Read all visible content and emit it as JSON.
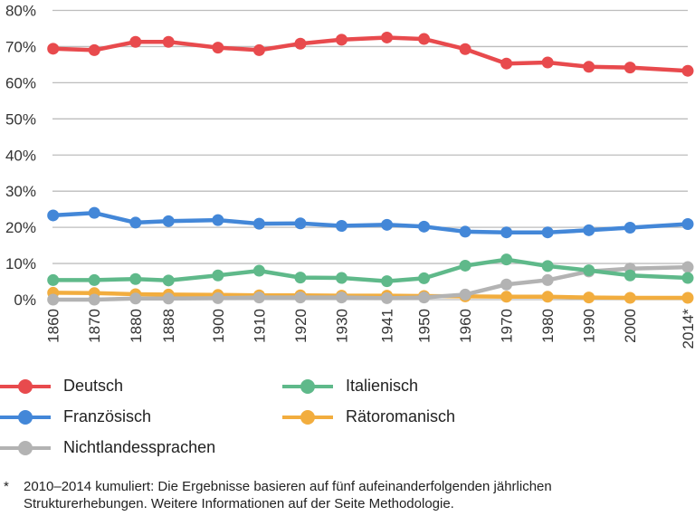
{
  "chart_data": {
    "type": "line",
    "x": [
      1860,
      1870,
      1880,
      1888,
      1900,
      1910,
      1920,
      1930,
      1941,
      1950,
      1960,
      1970,
      1980,
      1990,
      2000,
      2014
    ],
    "x_tick_labels": [
      "1860",
      "1870",
      "1880",
      "1888",
      "1900",
      "1910",
      "1920",
      "1930",
      "1941",
      "1950",
      "1960",
      "1970",
      "1980",
      "1990",
      "2000",
      "2014*"
    ],
    "y_tick_labels": [
      "0%",
      "10%",
      "20%",
      "30%",
      "40%",
      "50%",
      "60%",
      "70%",
      "80%"
    ],
    "ylim": [
      0,
      80
    ],
    "grid": true,
    "legend_position": "bottom",
    "series": [
      {
        "name": "Deutsch",
        "color": "#e84a4d",
        "values": [
          69.4,
          69.0,
          71.3,
          71.3,
          69.7,
          69.0,
          70.8,
          71.9,
          72.5,
          72.1,
          69.3,
          65.3,
          65.6,
          64.4,
          64.2,
          63.3
        ]
      },
      {
        "name": "Französisch",
        "color": "#4387d8",
        "values": [
          23.3,
          24.0,
          21.3,
          21.7,
          22.0,
          21.0,
          21.1,
          20.4,
          20.7,
          20.2,
          18.8,
          18.6,
          18.6,
          19.2,
          19.9,
          20.9
        ]
      },
      {
        "name": "Italienisch",
        "color": "#5fb98a",
        "values": [
          5.4,
          5.4,
          5.7,
          5.3,
          6.7,
          8.0,
          6.1,
          6.0,
          5.1,
          5.9,
          9.4,
          11.1,
          9.3,
          8.1,
          6.7,
          6.0
        ]
      },
      {
        "name": "Rätoromanisch",
        "color": "#f2ad3e",
        "values": [
          1.9,
          1.8,
          1.5,
          1.4,
          1.3,
          1.2,
          1.2,
          1.1,
          1.1,
          1.0,
          0.9,
          0.8,
          0.8,
          0.6,
          0.5,
          0.5
        ]
      },
      {
        "name": "Nichtlandessprachen",
        "color": "#b3b3b3",
        "values": [
          0.0,
          0.0,
          0.3,
          0.3,
          0.4,
          0.6,
          0.6,
          0.6,
          0.4,
          0.6,
          1.4,
          4.2,
          5.4,
          7.8,
          8.6,
          9.0
        ]
      }
    ]
  },
  "footnote": {
    "marker": "*",
    "text": "2010–2014 kumuliert: Die Ergebnisse basieren auf fünf aufeinanderfolgenden jährlichen Strukturerhebungen. Weitere Informationen auf der Seite Methodologie."
  }
}
